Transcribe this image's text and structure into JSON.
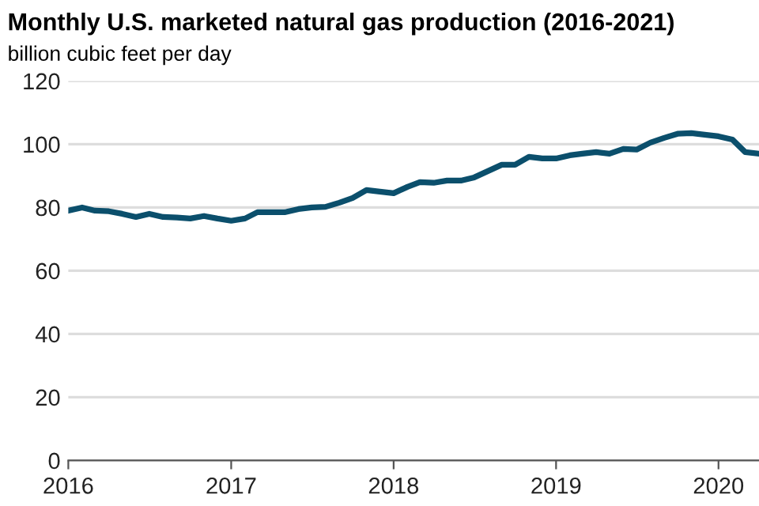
{
  "chart_data": {
    "type": "line",
    "title": "Monthly U.S. marketed natural gas production (2016-2021)",
    "subtitle": "billion cubic feet per day",
    "x": [
      "2016-01",
      "2016-02",
      "2016-03",
      "2016-04",
      "2016-05",
      "2016-06",
      "2016-07",
      "2016-08",
      "2016-09",
      "2016-10",
      "2016-11",
      "2016-12",
      "2017-01",
      "2017-02",
      "2017-03",
      "2017-04",
      "2017-05",
      "2017-06",
      "2017-07",
      "2017-08",
      "2017-09",
      "2017-10",
      "2017-11",
      "2017-12",
      "2018-01",
      "2018-02",
      "2018-03",
      "2018-04",
      "2018-05",
      "2018-06",
      "2018-07",
      "2018-08",
      "2018-09",
      "2018-10",
      "2018-11",
      "2018-12",
      "2019-01",
      "2019-02",
      "2019-03",
      "2019-04",
      "2019-05",
      "2019-06",
      "2019-07",
      "2019-08",
      "2019-09",
      "2019-10",
      "2019-11",
      "2019-12",
      "2020-01",
      "2020-02",
      "2020-03",
      "2020-04"
    ],
    "series": [
      {
        "color": "#0b4f6c",
        "values": [
          79,
          80,
          79,
          78.8,
          78,
          77,
          78,
          77,
          76.8,
          76.5,
          77.3,
          76.5,
          75.8,
          76.5,
          78.5,
          78.5,
          78.5,
          79.5,
          80,
          80.2,
          81.5,
          83,
          85.5,
          85,
          84.5,
          86.5,
          88,
          87.8,
          88.5,
          88.5,
          89.5,
          91.5,
          93.5,
          93.5,
          96,
          95.5,
          95.5,
          96.5,
          97,
          97.5,
          97,
          98.5,
          98.3,
          100.5,
          102,
          103.3,
          103.5,
          103,
          102.5,
          101.5,
          97.5,
          97
        ]
      }
    ],
    "xlim": [
      "2016-01",
      "2020-04"
    ],
    "xticks": [
      {
        "value": "2016-01",
        "label": "2016"
      },
      {
        "value": "2017-01",
        "label": "2017"
      },
      {
        "value": "2018-01",
        "label": "2018"
      },
      {
        "value": "2019-01",
        "label": "2019"
      },
      {
        "value": "2020-01",
        "label": "2020"
      }
    ],
    "ylim": [
      0,
      120
    ],
    "yticks": [
      0,
      20,
      40,
      60,
      80,
      100,
      120
    ],
    "grid": "y",
    "marker": "none",
    "line_style": "solid"
  }
}
